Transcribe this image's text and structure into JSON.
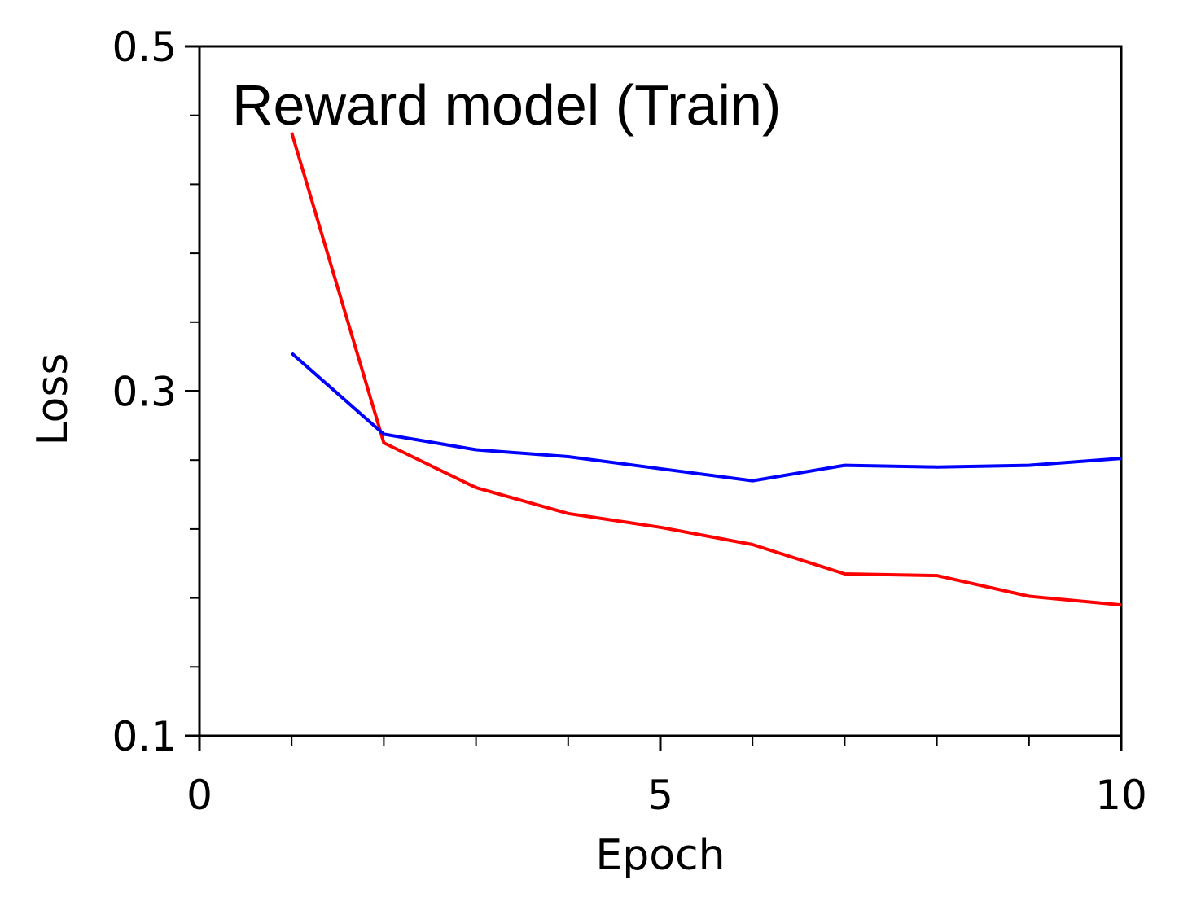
{
  "chart_data": {
    "type": "line",
    "title": "Reward model (Train)",
    "xlabel": "Epoch",
    "ylabel": "Loss",
    "xlim": [
      0,
      10
    ],
    "ylim": [
      0.1,
      0.5
    ],
    "xticks": [
      {
        "value": 0,
        "label": "0"
      },
      {
        "value": 5,
        "label": "5"
      },
      {
        "value": 10,
        "label": "10"
      }
    ],
    "xminor": [
      1,
      2,
      3,
      4,
      6,
      7,
      8,
      9
    ],
    "yticks": [
      {
        "value": 0.1,
        "label": "0.1"
      },
      {
        "value": 0.3,
        "label": "0.3"
      },
      {
        "value": 0.5,
        "label": "0.5"
      }
    ],
    "yminor": [
      0.14,
      0.18,
      0.22,
      0.26,
      0.34,
      0.38,
      0.42,
      0.46
    ],
    "grid": false,
    "x": [
      1,
      2,
      3,
      4,
      5,
      6,
      7,
      8,
      9,
      10
    ],
    "series": [
      {
        "color": "#ff0000",
        "values": [
          0.45,
          0.27,
          0.244,
          0.229,
          0.221,
          0.211,
          0.194,
          0.193,
          0.181,
          0.176
        ]
      },
      {
        "color": "#0000ff",
        "values": [
          0.322,
          0.275,
          0.266,
          0.262,
          0.255,
          0.248,
          0.257,
          0.256,
          0.257,
          0.261
        ]
      }
    ]
  }
}
